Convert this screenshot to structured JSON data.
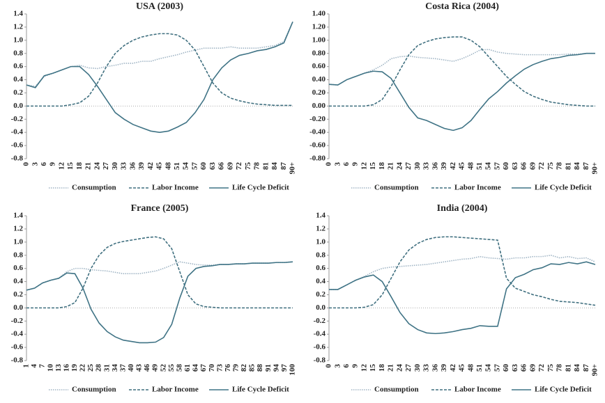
{
  "chart_data": [
    {
      "type": "line",
      "title": "USA (2003)",
      "categories": [
        "0",
        "3",
        "6",
        "9",
        "12",
        "15",
        "18",
        "21",
        "24",
        "27",
        "30",
        "33",
        "36",
        "39",
        "42",
        "45",
        "48",
        "51",
        "54",
        "57",
        "60",
        "63",
        "66",
        "69",
        "72",
        "75",
        "78",
        "81",
        "84",
        "87",
        "90+"
      ],
      "ylim": [
        -0.8,
        1.4
      ],
      "yticks": [
        1.4,
        1.2,
        {
          "value": 1,
          "label": "1.0"
        },
        0.8,
        0.6,
        0.4,
        0.2,
        {
          "value": 0,
          "label": "0.0"
        },
        -0.2,
        -0.4,
        -0.6,
        -0.8
      ],
      "series": [
        {
          "name": "Consumption",
          "color": "#9fb4c4",
          "style": "dotted",
          "values": [
            0.32,
            0.3,
            0.45,
            0.5,
            0.55,
            0.6,
            0.62,
            0.58,
            0.57,
            0.6,
            0.62,
            0.65,
            0.65,
            0.68,
            0.68,
            0.72,
            0.75,
            0.78,
            0.82,
            0.85,
            0.88,
            0.88,
            0.88,
            0.9,
            0.88,
            0.88,
            0.88,
            0.9,
            0.92,
            0.98,
            1.28
          ]
        },
        {
          "name": "Labor Income",
          "color": "#3f6f7f",
          "style": "dashed",
          "values": [
            0,
            0,
            0,
            0,
            0,
            0.02,
            0.05,
            0.15,
            0.35,
            0.6,
            0.8,
            0.92,
            1.0,
            1.05,
            1.08,
            1.1,
            1.1,
            1.08,
            1.0,
            0.85,
            0.6,
            0.35,
            0.2,
            0.12,
            0.08,
            0.05,
            0.03,
            0.02,
            0.01,
            0.01,
            0.01
          ]
        },
        {
          "name": "Life Cycle Deficit",
          "color": "#3f7385",
          "style": "solid",
          "values": [
            0.32,
            0.28,
            0.46,
            0.5,
            0.55,
            0.6,
            0.6,
            0.48,
            0.3,
            0.1,
            -0.1,
            -0.2,
            -0.28,
            -0.33,
            -0.38,
            -0.4,
            -0.38,
            -0.32,
            -0.25,
            -0.1,
            0.1,
            0.4,
            0.58,
            0.7,
            0.77,
            0.8,
            0.84,
            0.86,
            0.9,
            0.96,
            1.28
          ]
        }
      ]
    },
    {
      "type": "line",
      "title": "Costa Rica (2004)",
      "categories": [
        "0",
        "3",
        "6",
        "9",
        "12",
        "15",
        "18",
        "21",
        "24",
        "27",
        "30",
        "33",
        "36",
        "39",
        "42",
        "45",
        "48",
        "51",
        "54",
        "57",
        "60",
        "63",
        "66",
        "69",
        "72",
        "75",
        "78",
        "81",
        "84",
        "87",
        "90+"
      ],
      "ylim": [
        -0.8,
        1.4
      ],
      "yticks": [
        {
          "value": 1.4,
          "label": "1.40"
        },
        {
          "value": 1.2,
          "label": "1.20"
        },
        {
          "value": 1,
          "label": "1.00"
        },
        {
          "value": 0.8,
          "label": "0.80"
        },
        {
          "value": 0.6,
          "label": "0.60"
        },
        {
          "value": 0.4,
          "label": "0.40"
        },
        {
          "value": 0.2,
          "label": "0.20"
        },
        {
          "value": 0,
          "label": "0.00"
        },
        {
          "value": -0.2,
          "label": "-0.20"
        },
        {
          "value": -0.4,
          "label": "-0.40"
        },
        {
          "value": -0.6,
          "label": "-0.60"
        },
        {
          "value": -0.8,
          "label": "-0.80"
        }
      ],
      "series": [
        {
          "name": "Consumption",
          "color": "#9fb4c4",
          "style": "dotted",
          "values": [
            0.33,
            0.32,
            0.4,
            0.45,
            0.5,
            0.55,
            0.62,
            0.72,
            0.75,
            0.76,
            0.74,
            0.73,
            0.72,
            0.7,
            0.68,
            0.72,
            0.78,
            0.85,
            0.86,
            0.82,
            0.8,
            0.79,
            0.78,
            0.78,
            0.78,
            0.78,
            0.78,
            0.79,
            0.79,
            0.8,
            0.8
          ]
        },
        {
          "name": "Labor Income",
          "color": "#3f6f7f",
          "style": "dashed",
          "values": [
            0,
            0,
            0,
            0,
            0,
            0.02,
            0.1,
            0.3,
            0.55,
            0.78,
            0.92,
            0.98,
            1.02,
            1.04,
            1.05,
            1.05,
            1.0,
            0.9,
            0.75,
            0.6,
            0.45,
            0.33,
            0.22,
            0.15,
            0.1,
            0.06,
            0.04,
            0.02,
            0.01,
            0,
            0
          ]
        },
        {
          "name": "Life Cycle Deficit",
          "color": "#3f7385",
          "style": "solid",
          "values": [
            0.33,
            0.32,
            0.4,
            0.45,
            0.5,
            0.53,
            0.52,
            0.42,
            0.2,
            -0.02,
            -0.18,
            -0.22,
            -0.28,
            -0.34,
            -0.37,
            -0.33,
            -0.22,
            -0.05,
            0.11,
            0.22,
            0.35,
            0.46,
            0.56,
            0.63,
            0.68,
            0.72,
            0.74,
            0.77,
            0.78,
            0.8,
            0.8
          ]
        }
      ]
    },
    {
      "type": "line",
      "title": "France (2005)",
      "categories": [
        "1",
        "4",
        "7",
        "10",
        "13",
        "16",
        "19",
        "22",
        "25",
        "28",
        "31",
        "34",
        "37",
        "40",
        "43",
        "46",
        "49",
        "52",
        "55",
        "58",
        "61",
        "64",
        "67",
        "70",
        "73",
        "76",
        "79",
        "82",
        "85",
        "88",
        "91",
        "94",
        "97",
        "100"
      ],
      "ylim": [
        -0.8,
        1.4
      ],
      "yticks": [
        1.4,
        1.2,
        {
          "value": 1,
          "label": "1.0"
        },
        0.8,
        0.6,
        0.4,
        0.2,
        {
          "value": 0,
          "label": "0.0"
        },
        -0.2,
        -0.4,
        -0.6,
        -0.8
      ],
      "series": [
        {
          "name": "Consumption",
          "color": "#9fb4c4",
          "style": "dotted",
          "values": [
            0.27,
            0.3,
            0.38,
            0.42,
            0.45,
            0.55,
            0.6,
            0.6,
            0.58,
            0.57,
            0.56,
            0.54,
            0.52,
            0.52,
            0.52,
            0.54,
            0.56,
            0.6,
            0.65,
            0.7,
            0.68,
            0.66,
            0.65,
            0.65,
            0.66,
            0.66,
            0.67,
            0.67,
            0.68,
            0.68,
            0.68,
            0.69,
            0.69,
            0.7
          ]
        },
        {
          "name": "Labor Income",
          "color": "#3f6f7f",
          "style": "dashed",
          "values": [
            0,
            0,
            0,
            0,
            0,
            0.02,
            0.08,
            0.3,
            0.6,
            0.8,
            0.92,
            0.98,
            1.01,
            1.03,
            1.05,
            1.07,
            1.08,
            1.05,
            0.9,
            0.55,
            0.2,
            0.06,
            0.02,
            0.01,
            0,
            0,
            0,
            0,
            0,
            0,
            0,
            0,
            0,
            0
          ]
        },
        {
          "name": "Life Cycle Deficit",
          "color": "#3f7385",
          "style": "solid",
          "values": [
            0.27,
            0.3,
            0.38,
            0.42,
            0.45,
            0.53,
            0.52,
            0.3,
            -0.02,
            -0.23,
            -0.36,
            -0.44,
            -0.49,
            -0.51,
            -0.53,
            -0.53,
            -0.52,
            -0.45,
            -0.25,
            0.15,
            0.48,
            0.6,
            0.63,
            0.64,
            0.66,
            0.66,
            0.67,
            0.67,
            0.68,
            0.68,
            0.68,
            0.69,
            0.69,
            0.7
          ]
        }
      ]
    },
    {
      "type": "line",
      "title": "India (2004)",
      "categories": [
        "0",
        "3",
        "6",
        "9",
        "12",
        "15",
        "18",
        "21",
        "24",
        "27",
        "30",
        "33",
        "36",
        "39",
        "42",
        "45",
        "48",
        "51",
        "54",
        "57",
        "60",
        "63",
        "66",
        "69",
        "72",
        "75",
        "78",
        "81",
        "84",
        "87",
        "90+"
      ],
      "ylim": [
        -0.8,
        1.4
      ],
      "yticks": [
        1.4,
        1.2,
        {
          "value": 1,
          "label": "1.0"
        },
        0.8,
        0.6,
        0.4,
        0.2,
        {
          "value": 0,
          "label": "0.0"
        },
        -0.2,
        -0.4,
        -0.6,
        -0.8
      ],
      "series": [
        {
          "name": "Consumption",
          "color": "#9fb4c4",
          "style": "dotted",
          "values": [
            0.28,
            0.28,
            0.35,
            0.42,
            0.48,
            0.55,
            0.6,
            0.62,
            0.63,
            0.64,
            0.65,
            0.66,
            0.68,
            0.7,
            0.72,
            0.74,
            0.75,
            0.78,
            0.76,
            0.75,
            0.74,
            0.76,
            0.76,
            0.78,
            0.78,
            0.8,
            0.76,
            0.78,
            0.75,
            0.76,
            0.7
          ]
        },
        {
          "name": "Labor Income",
          "color": "#3f6f7f",
          "style": "dashed",
          "values": [
            0,
            0,
            0,
            0,
            0.01,
            0.05,
            0.2,
            0.45,
            0.7,
            0.88,
            0.98,
            1.04,
            1.07,
            1.08,
            1.08,
            1.07,
            1.06,
            1.05,
            1.04,
            1.03,
            0.45,
            0.3,
            0.25,
            0.2,
            0.17,
            0.13,
            0.1,
            0.09,
            0.08,
            0.06,
            0.04
          ]
        },
        {
          "name": "Life Cycle Deficit",
          "color": "#3f7385",
          "style": "solid",
          "values": [
            0.28,
            0.28,
            0.35,
            0.42,
            0.47,
            0.5,
            0.4,
            0.17,
            -0.07,
            -0.24,
            -0.33,
            -0.38,
            -0.39,
            -0.38,
            -0.36,
            -0.33,
            -0.31,
            -0.27,
            -0.28,
            -0.28,
            0.29,
            0.46,
            0.51,
            0.58,
            0.61,
            0.67,
            0.66,
            0.69,
            0.67,
            0.7,
            0.66
          ]
        }
      ]
    }
  ]
}
